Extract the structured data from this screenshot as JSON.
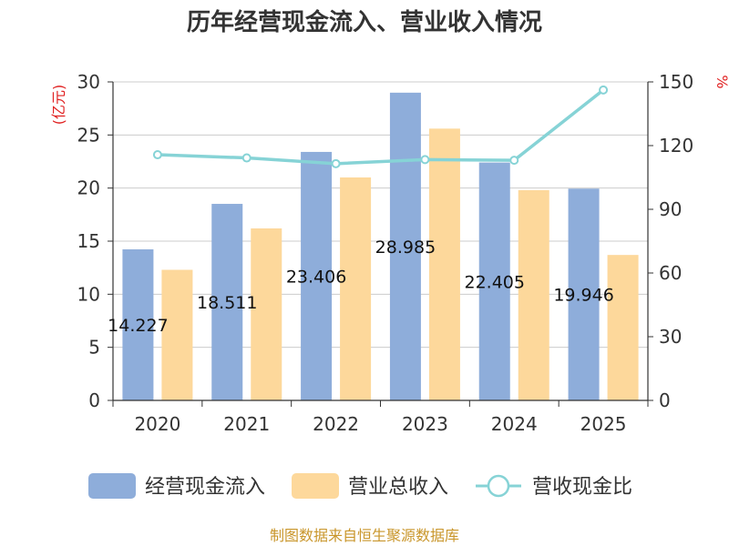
{
  "chart_data": {
    "type": "bar",
    "title": "历年经营现金流入、营业收入情况",
    "categories": [
      "2020",
      "2021",
      "2022",
      "2023",
      "2024",
      "2025"
    ],
    "series": [
      {
        "name": "经营现金流入",
        "type": "bar",
        "axis": "left",
        "color": "#8eadda",
        "values": [
          14.227,
          18.511,
          23.406,
          28.985,
          22.405,
          19.946
        ],
        "data_labels": [
          "14.227",
          "18.511",
          "23.406",
          "28.985",
          "22.405",
          "19.946"
        ]
      },
      {
        "name": "营业总收入",
        "type": "bar",
        "axis": "left",
        "color": "#fdd89b",
        "values": [
          12.3,
          16.2,
          21.0,
          25.6,
          19.8,
          13.7
        ]
      },
      {
        "name": "营收现金比",
        "type": "line",
        "axis": "right",
        "color": "#86d3d6",
        "values": [
          115.7,
          114.2,
          111.5,
          113.4,
          113.1,
          146.2
        ]
      }
    ],
    "y_left": {
      "unit": "(亿元)",
      "ylim": [
        0,
        30
      ],
      "ticks": [
        "0",
        "5",
        "10",
        "15",
        "20",
        "25",
        "30"
      ]
    },
    "y_right": {
      "unit": "%",
      "ylim": [
        0,
        150
      ],
      "ticks": [
        "0",
        "30",
        "60",
        "90",
        "120",
        "150"
      ]
    },
    "grid": true,
    "legend_position": "bottom"
  },
  "source": "制图数据来自恒生聚源数据库"
}
